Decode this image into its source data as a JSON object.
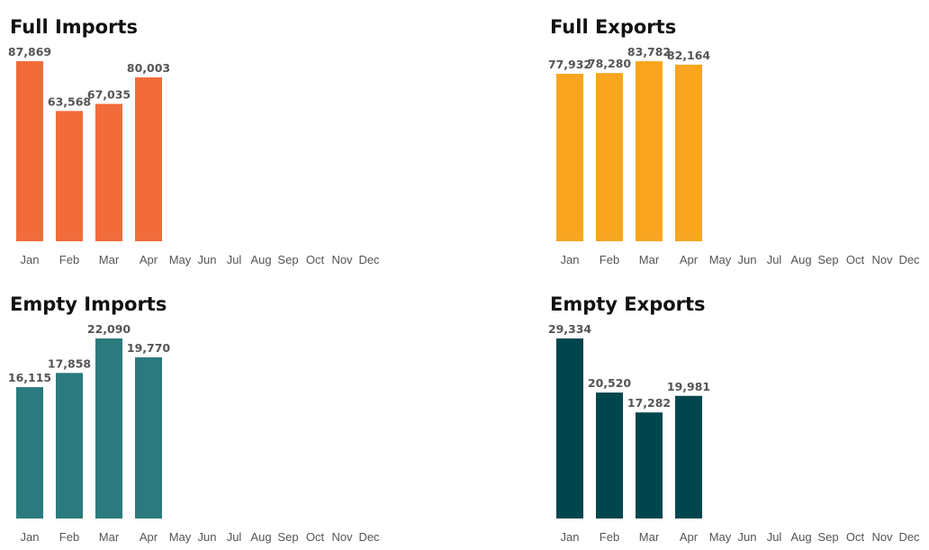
{
  "chart_data": [
    {
      "type": "bar",
      "title": "Full Imports",
      "color": "#f26b3a",
      "categories": [
        "Jan",
        "Feb",
        "Mar",
        "Apr",
        "May",
        "Jun",
        "Jul",
        "Aug",
        "Sep",
        "Oct",
        "Nov",
        "Dec"
      ],
      "values": [
        87869,
        63568,
        67035,
        80003,
        null,
        null,
        null,
        null,
        null,
        null,
        null,
        null
      ],
      "value_labels": [
        "87,869",
        "63,568",
        "67,035",
        "80,003",
        null,
        null,
        null,
        null,
        null,
        null,
        null,
        null
      ]
    },
    {
      "type": "bar",
      "title": "Full Exports",
      "color": "#f9a51f",
      "categories": [
        "Jan",
        "Feb",
        "Mar",
        "Apr",
        "May",
        "Jun",
        "Jul",
        "Aug",
        "Sep",
        "Oct",
        "Nov",
        "Dec"
      ],
      "values": [
        77932,
        78280,
        83782,
        82164,
        null,
        null,
        null,
        null,
        null,
        null,
        null,
        null
      ],
      "value_labels": [
        "77,932",
        "78,280",
        "83,782",
        "82,164",
        null,
        null,
        null,
        null,
        null,
        null,
        null,
        null
      ]
    },
    {
      "type": "bar",
      "title": "Empty Imports",
      "color": "#2b7a7e",
      "categories": [
        "Jan",
        "Feb",
        "Mar",
        "Apr",
        "May",
        "Jun",
        "Jul",
        "Aug",
        "Sep",
        "Oct",
        "Nov",
        "Dec"
      ],
      "values": [
        16115,
        17858,
        22090,
        19770,
        null,
        null,
        null,
        null,
        null,
        null,
        null,
        null
      ],
      "value_labels": [
        "16,115",
        "17,858",
        "22,090",
        "19,770",
        null,
        null,
        null,
        null,
        null,
        null,
        null,
        null
      ]
    },
    {
      "type": "bar",
      "title": "Empty Exports",
      "color": "#00464f",
      "categories": [
        "Jan",
        "Feb",
        "Mar",
        "Apr",
        "May",
        "Jun",
        "Jul",
        "Aug",
        "Sep",
        "Oct",
        "Nov",
        "Dec"
      ],
      "values": [
        29334,
        20520,
        17282,
        19981,
        null,
        null,
        null,
        null,
        null,
        null,
        null,
        null
      ],
      "value_labels": [
        "29,334",
        "20,520",
        "17,282",
        "19,981",
        null,
        null,
        null,
        null,
        null,
        null,
        null,
        null
      ]
    }
  ]
}
